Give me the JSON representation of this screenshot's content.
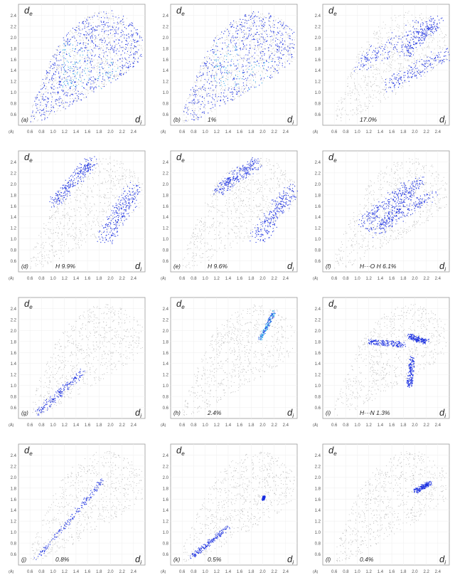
{
  "axis": {
    "y_label": "d",
    "y_sub": "e",
    "x_label": "d",
    "x_sub": "i",
    "unit_label": "(Å)",
    "x_ticks": [
      "0.6",
      "0.8",
      "1.0",
      "1.2",
      "1.4",
      "1.6",
      "1.8",
      "2.0",
      "2.2",
      "2.4"
    ],
    "y_ticks": [
      "2.4",
      "2.2",
      "2.0",
      "1.8",
      "1.6",
      "1.4",
      "1.2",
      "1.0",
      "0.8",
      "0.6"
    ]
  },
  "colors": {
    "background_points": "#b8b8b8",
    "highlight_points": "#1a2fe0",
    "dense_points": "#2fa8e8",
    "frame": "#9a9a9a"
  },
  "chart_data": [
    {
      "type": "scatter",
      "caption": "(a)",
      "percent": "",
      "xlim": [
        0.4,
        2.6
      ],
      "ylim": [
        0.4,
        2.6
      ],
      "grid": true
    },
    {
      "type": "scatter",
      "caption": "(b)",
      "percent": "1%",
      "xlim": [
        0.4,
        2.6
      ],
      "ylim": [
        0.4,
        2.6
      ],
      "grid": true
    },
    {
      "type": "scatter",
      "caption": "",
      "percent": "17.0%",
      "xlim": [
        0.4,
        2.6
      ],
      "ylim": [
        0.4,
        2.6
      ],
      "grid": true
    },
    {
      "type": "scatter",
      "caption": "(d)",
      "percent": "H 9.9%",
      "xlim": [
        0.4,
        2.6
      ],
      "ylim": [
        0.4,
        2.6
      ],
      "grid": true
    },
    {
      "type": "scatter",
      "caption": "(e)",
      "percent": "H 9.6%",
      "xlim": [
        0.4,
        2.6
      ],
      "ylim": [
        0.4,
        2.6
      ],
      "grid": true
    },
    {
      "type": "scatter",
      "caption": "(f)",
      "percent": "H···O H 6.1%",
      "xlim": [
        0.4,
        2.6
      ],
      "ylim": [
        0.4,
        2.6
      ],
      "grid": true
    },
    {
      "type": "scatter",
      "caption": "(g)",
      "percent": "",
      "xlim": [
        0.4,
        2.6
      ],
      "ylim": [
        0.4,
        2.6
      ],
      "grid": true
    },
    {
      "type": "scatter",
      "caption": "(h)",
      "percent": "2.4%",
      "xlim": [
        0.4,
        2.6
      ],
      "ylim": [
        0.4,
        2.6
      ],
      "grid": true
    },
    {
      "type": "scatter",
      "caption": "(i)",
      "percent": "H···N 1.3%",
      "xlim": [
        0.4,
        2.6
      ],
      "ylim": [
        0.4,
        2.6
      ],
      "grid": true
    },
    {
      "type": "scatter",
      "caption": "(j)",
      "percent": "0.8%",
      "xlim": [
        0.4,
        2.6
      ],
      "ylim": [
        0.4,
        2.6
      ],
      "grid": true
    },
    {
      "type": "scatter",
      "caption": "(k)",
      "percent": "0.5%",
      "xlim": [
        0.4,
        2.6
      ],
      "ylim": [
        0.4,
        2.6
      ],
      "grid": true
    },
    {
      "type": "scatter",
      "caption": "(l)",
      "percent": "0.4%",
      "xlim": [
        0.4,
        2.6
      ],
      "ylim": [
        0.4,
        2.6
      ],
      "grid": true
    }
  ]
}
